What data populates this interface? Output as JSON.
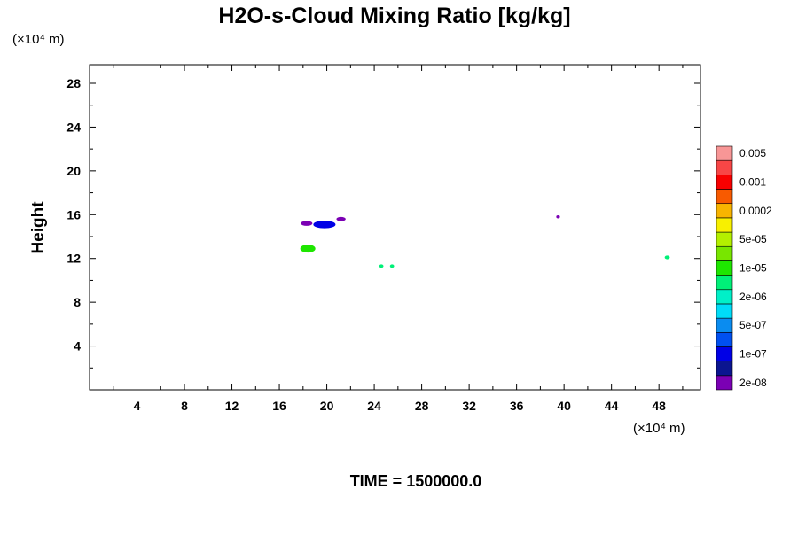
{
  "chart_data": {
    "type": "contour",
    "title": "H2O-s-Cloud Mixing Ratio [kg/kg]",
    "ylabel": "Height",
    "xunit": "(×10⁴ m)",
    "yunit": "(×10⁴ m)",
    "time_label": "TIME = 1500000.0",
    "xlim": [
      0,
      51.5
    ],
    "ylim": [
      0,
      29.7
    ],
    "xticks": [
      4,
      8,
      12,
      16,
      20,
      24,
      28,
      32,
      36,
      40,
      44,
      48
    ],
    "xtick_labels": [
      "4",
      "8",
      "12",
      "16",
      "20",
      "24",
      "28",
      "32",
      "36",
      "40",
      "44",
      "48"
    ],
    "yticks": [
      4,
      8,
      12,
      16,
      20,
      24,
      28
    ],
    "ytick_labels": [
      "4",
      "8",
      "12",
      "16",
      "20",
      "24",
      "28"
    ],
    "colorbar": {
      "colors": [
        "#7b00b4",
        "#0b1590",
        "#0000e6",
        "#0050f0",
        "#0a8cf0",
        "#00dcf8",
        "#00f0c8",
        "#00f078",
        "#1ee600",
        "#78e600",
        "#b4f000",
        "#f8f000",
        "#f8b400",
        "#f85a00",
        "#f80000",
        "#f84646",
        "#f89696"
      ],
      "labels": [
        "2e-08",
        "1e-07",
        "5e-07",
        "2e-06",
        "1e-05",
        "5e-05",
        "0.0002",
        "0.001",
        "0.005"
      ]
    },
    "features": [
      {
        "x": 19.8,
        "y": 15.1,
        "rx": 0.9,
        "ry": 0.3,
        "color": "#0000e6"
      },
      {
        "x": 18.3,
        "y": 15.2,
        "rx": 0.45,
        "ry": 0.18,
        "color": "#7b00b4"
      },
      {
        "x": 21.2,
        "y": 15.6,
        "rx": 0.35,
        "ry": 0.15,
        "color": "#7b00b4"
      },
      {
        "x": 18.4,
        "y": 12.9,
        "rx": 0.6,
        "ry": 0.33,
        "color": "#1ee600"
      },
      {
        "x": 24.6,
        "y": 11.3,
        "rx": 0.14,
        "ry": 0.12,
        "color": "#00f078"
      },
      {
        "x": 25.5,
        "y": 11.3,
        "rx": 0.14,
        "ry": 0.12,
        "color": "#00f078"
      },
      {
        "x": 39.5,
        "y": 15.8,
        "rx": 0.12,
        "ry": 0.1,
        "color": "#7b00b4"
      },
      {
        "x": 48.7,
        "y": 12.1,
        "rx": 0.18,
        "ry": 0.13,
        "color": "#00f078"
      }
    ]
  }
}
